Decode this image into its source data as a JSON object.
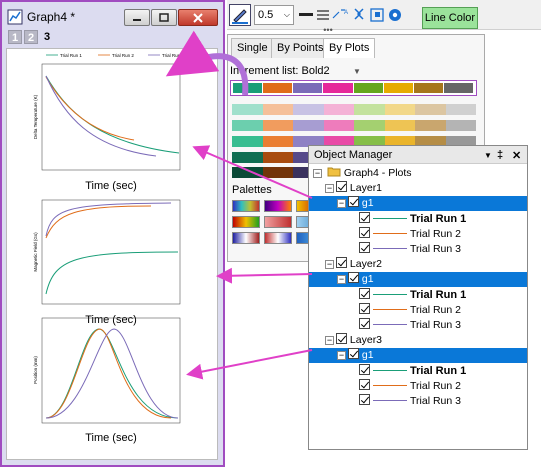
{
  "graph_window": {
    "title": "Graph4 *",
    "layer_tabs": [
      "1",
      "2",
      "3"
    ],
    "legend": [
      "Trial Run 1",
      "Trial Run 2",
      "Trial Run 3"
    ],
    "panels": [
      {
        "ylabel": "Delta Temperature (K)",
        "xlabel": "Time (sec)"
      },
      {
        "ylabel": "Magnetic Field (Gs)",
        "xlabel": "Time (sec)"
      },
      {
        "ylabel": "Position (mm)",
        "xlabel": "Time (sec)"
      }
    ]
  },
  "toolbar": {
    "line_width": "0.5",
    "line_color_label": "Line Color"
  },
  "increment_panel": {
    "tabs": [
      "Single",
      "By Points",
      "By Plots"
    ],
    "active_tab": "By Plots",
    "increment_label": "Increment list: Bold2",
    "palettes_label": "Palettes"
  },
  "object_manager": {
    "title": "Object Manager",
    "root": "Graph4 - Plots",
    "layers": [
      {
        "name": "Layer1",
        "group": "g1",
        "plots": [
          "Trial Run 1",
          "Trial Run 2",
          "Trial Run 3"
        ]
      },
      {
        "name": "Layer2",
        "group": "g1",
        "plots": [
          "Trial Run 1",
          "Trial Run 2",
          "Trial Run 3"
        ]
      },
      {
        "name": "Layer3",
        "group": "g1",
        "plots": [
          "Trial Run 1",
          "Trial Run 2",
          "Trial Run 3"
        ]
      }
    ]
  },
  "colors": {
    "series1": "#1a9e78",
    "series2": "#e06d1a",
    "series3": "#7b6bb8",
    "selection": "#0a78d8",
    "arrow": "#e040c8"
  }
}
